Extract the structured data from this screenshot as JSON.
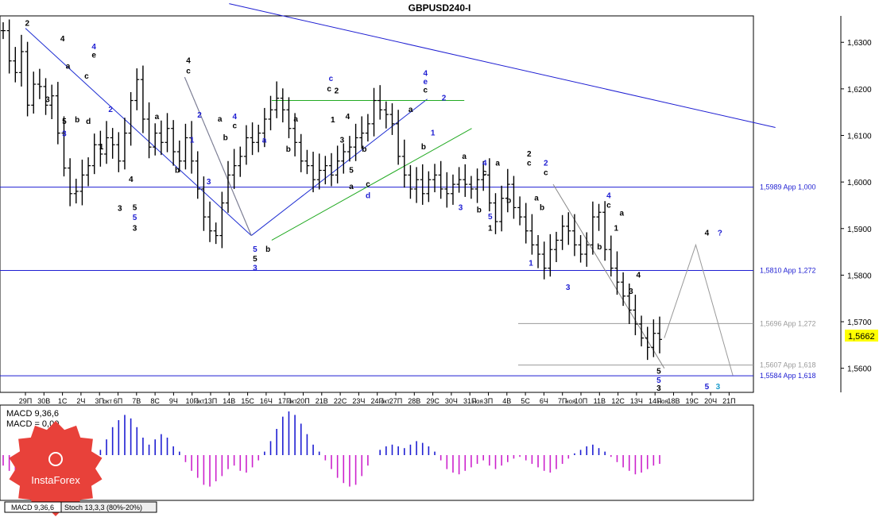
{
  "chart_data": {
    "type": "candlestick",
    "title": "GBPUSD240-I",
    "symbol": "GBPUSD",
    "timeframe": "H4",
    "ylim": [
      1.555,
      1.6355
    ],
    "y_ticks": [
      {
        "value": 1.63,
        "label": "1,6300"
      },
      {
        "value": 1.62,
        "label": "1,6200"
      },
      {
        "value": 1.61,
        "label": "1,6100"
      },
      {
        "value": 1.6,
        "label": "1,6000"
      },
      {
        "value": 1.59,
        "label": "1,5900"
      },
      {
        "value": 1.58,
        "label": "1,5800"
      },
      {
        "value": 1.57,
        "label": "1,5700"
      },
      {
        "value": 1.56,
        "label": "1,5600"
      }
    ],
    "current_price": {
      "value": 1.5662,
      "label": "1,5662"
    },
    "x_ticks": [
      "29П",
      "30В",
      "1С",
      "2Ч",
      "3П",
      "6П",
      "7В",
      "8С",
      "9Ч",
      "10П",
      "13П",
      "14В",
      "15С",
      "16Ч",
      "17П",
      "20П",
      "21В",
      "22С",
      "23Ч",
      "24П",
      "27П",
      "28В",
      "29С",
      "30Ч",
      "31П",
      "3П",
      "4В",
      "5С",
      "6Ч",
      "7П",
      "10П",
      "11В",
      "12С",
      "13Ч",
      "14П",
      "18В",
      "19С",
      "20Ч",
      "21П"
    ],
    "month_labels": [
      {
        "after_tick": 4,
        "label": "окт"
      },
      {
        "after_tick": 9,
        "label": "окт"
      },
      {
        "after_tick": 14,
        "label": "окт"
      },
      {
        "after_tick": 19,
        "label": "окт"
      },
      {
        "after_tick": 24,
        "label": "ноя"
      },
      {
        "after_tick": 29,
        "label": "ноя"
      },
      {
        "after_tick": 34,
        "label": "ноя"
      }
    ],
    "price_path": [
      [
        0,
        1.6325
      ],
      [
        1,
        1.626
      ],
      [
        2,
        1.6235
      ],
      [
        3,
        1.628
      ],
      [
        4,
        1.6165
      ],
      [
        5,
        1.621
      ],
      [
        6,
        1.6205
      ],
      [
        7,
        1.6165
      ],
      [
        8,
        1.6185
      ],
      [
        9,
        1.6105
      ],
      [
        10,
        1.603
      ],
      [
        11,
        1.5975
      ],
      [
        12,
        1.598
      ],
      [
        13,
        1.6015
      ],
      [
        14,
        1.6035
      ],
      [
        15,
        1.608
      ],
      [
        16,
        1.606
      ],
      [
        17,
        1.6095
      ],
      [
        18,
        1.608
      ],
      [
        19,
        1.6045
      ],
      [
        20,
        1.6105
      ],
      [
        21,
        1.6175
      ],
      [
        22,
        1.622
      ],
      [
        23,
        1.6135
      ],
      [
        24,
        1.6075
      ],
      [
        25,
        1.6105
      ],
      [
        26,
        1.6085
      ],
      [
        27,
        1.6115
      ],
      [
        28,
        1.6065
      ],
      [
        29,
        1.6045
      ],
      [
        30,
        1.6095
      ],
      [
        31,
        1.6045
      ],
      [
        32,
        1.5985
      ],
      [
        33,
        1.5925
      ],
      [
        34,
        1.5895
      ],
      [
        35,
        1.5885
      ],
      [
        36,
        1.5955
      ],
      [
        37,
        1.6015
      ],
      [
        38,
        1.6035
      ],
      [
        39,
        1.6055
      ],
      [
        40,
        1.6095
      ],
      [
        41,
        1.6085
      ],
      [
        42,
        1.6105
      ],
      [
        43,
        1.6135
      ],
      [
        44,
        1.6155
      ],
      [
        45,
        1.618
      ],
      [
        46,
        1.6155
      ],
      [
        47,
        1.6115
      ],
      [
        48,
        1.6085
      ],
      [
        49,
        1.6045
      ],
      [
        50,
        1.6035
      ],
      [
        51,
        1.6005
      ],
      [
        52,
        1.6025
      ],
      [
        53,
        1.6035
      ],
      [
        54,
        1.6015
      ],
      [
        55,
        1.6045
      ],
      [
        56,
        1.6065
      ],
      [
        57,
        1.6075
      ],
      [
        58,
        1.6095
      ],
      [
        59,
        1.6105
      ],
      [
        60,
        1.6125
      ],
      [
        61,
        1.6175
      ],
      [
        62,
        1.6155
      ],
      [
        63,
        1.6145
      ],
      [
        64,
        1.6125
      ],
      [
        65,
        1.6055
      ],
      [
        66,
        1.6015
      ],
      [
        67,
        1.5985
      ],
      [
        68,
        1.6005
      ],
      [
        69,
        1.5975
      ],
      [
        70,
        1.6005
      ],
      [
        71,
        1.6015
      ],
      [
        72,
        1.5985
      ],
      [
        73,
        1.5975
      ],
      [
        74,
        1.5995
      ],
      [
        75,
        1.6005
      ],
      [
        76,
        1.5995
      ],
      [
        77,
        1.5985
      ],
      [
        78,
        1.6005
      ],
      [
        79,
        1.6015
      ],
      [
        80,
        1.5955
      ],
      [
        81,
        1.5915
      ],
      [
        82,
        1.5965
      ],
      [
        83,
        1.5995
      ],
      [
        84,
        1.5945
      ],
      [
        85,
        1.5925
      ],
      [
        86,
        1.5895
      ],
      [
        87,
        1.5865
      ],
      [
        88,
        1.5845
      ],
      [
        89,
        1.5815
      ],
      [
        90,
        1.5855
      ],
      [
        91,
        1.5875
      ],
      [
        92,
        1.5905
      ],
      [
        93,
        1.5895
      ],
      [
        94,
        1.5865
      ],
      [
        95,
        1.5845
      ],
      [
        96,
        1.5865
      ],
      [
        97,
        1.5925
      ],
      [
        98,
        1.5935
      ],
      [
        99,
        1.5855
      ],
      [
        100,
        1.5815
      ],
      [
        101,
        1.5785
      ],
      [
        102,
        1.5755
      ],
      [
        103,
        1.5725
      ],
      [
        104,
        1.5695
      ],
      [
        105,
        1.5665
      ],
      [
        106,
        1.5645
      ],
      [
        107,
        1.5675
      ],
      [
        108,
        1.5662
      ]
    ],
    "horizontal_levels": [
      {
        "value": 1.5989,
        "label": "1,5989 App 1,000",
        "color": "#1e1ed2",
        "style": "solid"
      },
      {
        "value": 1.581,
        "label": "1,5810 App 1,272",
        "color": "#1e1ed2",
        "style": "solid"
      },
      {
        "value": 1.5696,
        "label": "1,5696 App 1,272",
        "color": "#9a9a9a",
        "style": "partial"
      },
      {
        "value": 1.5607,
        "label": "1,5607 App 1,618",
        "color": "#9a9a9a",
        "style": "partial"
      },
      {
        "value": 1.5584,
        "label": "1,5584 App 1,618",
        "color": "#1e1ed2",
        "style": "solid"
      }
    ],
    "trendlines": [
      {
        "color": "#1e1ed2",
        "from": [
          11,
          1.6383
        ],
        "to": [
          40.5,
          1.6117
        ]
      },
      {
        "color": "#1e2ed2",
        "from": [
          0,
          1.633
        ],
        "to": [
          12.2,
          1.5885
        ]
      },
      {
        "color": "#1e2ed2",
        "from": [
          8.6,
          1.6225
        ],
        "to": [
          12.2,
          1.5885
        ]
      },
      {
        "color": "#1e2ed2",
        "from": [
          12.2,
          1.5885
        ],
        "to": [
          21.7,
          1.6178
        ]
      },
      {
        "color": "#22aa22",
        "from": [
          13.3,
          1.6175
        ],
        "to": [
          23.7,
          1.6175
        ]
      },
      {
        "color": "#22aa22",
        "from": [
          13.3,
          1.5875
        ],
        "to": [
          24.1,
          1.6115
        ]
      },
      {
        "color": "#888888",
        "from": [
          28.5,
          1.5995
        ],
        "to": [
          34.5,
          1.56
        ]
      },
      {
        "color": "#888888",
        "from": [
          8.6,
          1.6225
        ],
        "to": [
          12.2,
          1.5885
        ]
      }
    ],
    "forecast_path": [
      [
        34.5,
        1.5665
      ],
      [
        36.2,
        1.5865
      ],
      [
        38.2,
        1.5585
      ]
    ],
    "wave_labels": [
      {
        "text": "2",
        "x": 0.1,
        "y": 1.6335,
        "color": "#000000"
      },
      {
        "text": "4",
        "x": 2.0,
        "y": 1.6302,
        "color": "#000000"
      },
      {
        "text": "4",
        "x": 3.7,
        "y": 1.6285,
        "color": "#1e1ed2"
      },
      {
        "text": "e",
        "x": 3.7,
        "y": 1.6267,
        "color": "#000000"
      },
      {
        "text": "a",
        "x": 2.3,
        "y": 1.6243,
        "color": "#000000"
      },
      {
        "text": "c",
        "x": 3.3,
        "y": 1.6222,
        "color": "#000000"
      },
      {
        "text": "3",
        "x": 1.2,
        "y": 1.6172,
        "color": "#000000"
      },
      {
        "text": "2",
        "x": 4.6,
        "y": 1.615,
        "color": "#1e1ed2"
      },
      {
        "text": "5",
        "x": 2.1,
        "y": 1.6125,
        "color": "#000000"
      },
      {
        "text": "b",
        "x": 2.8,
        "y": 1.6128,
        "color": "#000000"
      },
      {
        "text": "d",
        "x": 3.4,
        "y": 1.6125,
        "color": "#000000"
      },
      {
        "text": "3",
        "x": 2.1,
        "y": 1.6098,
        "color": "#1e1ed2"
      },
      {
        "text": "1",
        "x": 4.1,
        "y": 1.607,
        "color": "#000000"
      },
      {
        "text": "4",
        "x": 5.7,
        "y": 1.6,
        "color": "#000000"
      },
      {
        "text": "3",
        "x": 5.1,
        "y": 1.5938,
        "color": "#000000"
      },
      {
        "text": "5",
        "x": 5.9,
        "y": 1.594,
        "color": "#000000"
      },
      {
        "text": "5",
        "x": 5.9,
        "y": 1.5918,
        "color": "#1e1ed2"
      },
      {
        "text": "3",
        "x": 5.9,
        "y": 1.5895,
        "color": "#000000"
      },
      {
        "text": "a",
        "x": 7.1,
        "y": 1.6135,
        "color": "#000000"
      },
      {
        "text": "b",
        "x": 8.2,
        "y": 1.602,
        "color": "#000000"
      },
      {
        "text": "4",
        "x": 8.8,
        "y": 1.6255,
        "color": "#000000"
      },
      {
        "text": "c",
        "x": 8.8,
        "y": 1.6233,
        "color": "#000000"
      },
      {
        "text": "2",
        "x": 9.4,
        "y": 1.6138,
        "color": "#1e1ed2"
      },
      {
        "text": "1",
        "x": 9.0,
        "y": 1.6085,
        "color": "#1e1ed2"
      },
      {
        "text": "3",
        "x": 9.9,
        "y": 1.5995,
        "color": "#1e1ed2"
      },
      {
        "text": "a",
        "x": 10.5,
        "y": 1.613,
        "color": "#000000"
      },
      {
        "text": "b",
        "x": 10.8,
        "y": 1.609,
        "color": "#000000"
      },
      {
        "text": "4",
        "x": 11.3,
        "y": 1.6135,
        "color": "#1e1ed2"
      },
      {
        "text": "c",
        "x": 11.3,
        "y": 1.6115,
        "color": "#000000"
      },
      {
        "text": "a",
        "x": 12.9,
        "y": 1.6085,
        "color": "#1e1ed2"
      },
      {
        "text": "5",
        "x": 12.4,
        "y": 1.585,
        "color": "#1e1ed2"
      },
      {
        "text": "5",
        "x": 12.4,
        "y": 1.583,
        "color": "#000000"
      },
      {
        "text": "3",
        "x": 12.4,
        "y": 1.581,
        "color": "#1e1ed2"
      },
      {
        "text": "b",
        "x": 13.1,
        "y": 1.585,
        "color": "#000000"
      },
      {
        "text": "a",
        "x": 14.6,
        "y": 1.613,
        "color": "#000000"
      },
      {
        "text": "b",
        "x": 14.2,
        "y": 1.6065,
        "color": "#000000"
      },
      {
        "text": "c",
        "x": 16.5,
        "y": 1.6217,
        "color": "#1e1ed2"
      },
      {
        "text": "c",
        "x": 16.4,
        "y": 1.6195,
        "color": "#000000"
      },
      {
        "text": "2",
        "x": 16.8,
        "y": 1.619,
        "color": "#000000"
      },
      {
        "text": "1",
        "x": 16.6,
        "y": 1.6128,
        "color": "#000000"
      },
      {
        "text": "4",
        "x": 17.4,
        "y": 1.6135,
        "color": "#000000"
      },
      {
        "text": "3",
        "x": 17.1,
        "y": 1.6085,
        "color": "#000000"
      },
      {
        "text": "b",
        "x": 18.3,
        "y": 1.6065,
        "color": "#000000"
      },
      {
        "text": "5",
        "x": 17.6,
        "y": 1.602,
        "color": "#000000"
      },
      {
        "text": "a",
        "x": 17.6,
        "y": 1.5985,
        "color": "#000000"
      },
      {
        "text": "c",
        "x": 18.5,
        "y": 1.599,
        "color": "#000000"
      },
      {
        "text": "d",
        "x": 18.5,
        "y": 1.5965,
        "color": "#1e1ed2"
      },
      {
        "text": "4",
        "x": 21.6,
        "y": 1.6228,
        "color": "#1e1ed2"
      },
      {
        "text": "e",
        "x": 21.6,
        "y": 1.621,
        "color": "#1e1ed2"
      },
      {
        "text": "c",
        "x": 21.6,
        "y": 1.6192,
        "color": "#000000"
      },
      {
        "text": "a",
        "x": 20.8,
        "y": 1.615,
        "color": "#000000"
      },
      {
        "text": "2",
        "x": 22.6,
        "y": 1.6175,
        "color": "#1e1ed2"
      },
      {
        "text": "1",
        "x": 22.0,
        "y": 1.61,
        "color": "#1e1ed2"
      },
      {
        "text": "b",
        "x": 21.5,
        "y": 1.607,
        "color": "#000000"
      },
      {
        "text": "a",
        "x": 23.7,
        "y": 1.605,
        "color": "#000000"
      },
      {
        "text": "4",
        "x": 24.8,
        "y": 1.6035,
        "color": "#1e1ed2"
      },
      {
        "text": "c",
        "x": 24.8,
        "y": 1.6015,
        "color": "#000000"
      },
      {
        "text": "a",
        "x": 25.5,
        "y": 1.6035,
        "color": "#000000"
      },
      {
        "text": "3",
        "x": 23.5,
        "y": 1.594,
        "color": "#1e1ed2"
      },
      {
        "text": "b",
        "x": 24.5,
        "y": 1.5935,
        "color": "#000000"
      },
      {
        "text": "5",
        "x": 25.1,
        "y": 1.592,
        "color": "#1e1ed2"
      },
      {
        "text": "1",
        "x": 25.1,
        "y": 1.5895,
        "color": "#000000"
      },
      {
        "text": "b",
        "x": 26.1,
        "y": 1.5955,
        "color": "#000000"
      },
      {
        "text": "2",
        "x": 27.2,
        "y": 1.6055,
        "color": "#000000"
      },
      {
        "text": "c",
        "x": 27.2,
        "y": 1.6035,
        "color": "#000000"
      },
      {
        "text": "2",
        "x": 28.1,
        "y": 1.6035,
        "color": "#1e1ed2"
      },
      {
        "text": "c",
        "x": 28.1,
        "y": 1.6015,
        "color": "#000000"
      },
      {
        "text": "a",
        "x": 27.6,
        "y": 1.596,
        "color": "#000000"
      },
      {
        "text": "b",
        "x": 27.9,
        "y": 1.594,
        "color": "#000000"
      },
      {
        "text": "1",
        "x": 27.3,
        "y": 1.582,
        "color": "#1e1ed2"
      },
      {
        "text": "4",
        "x": 31.5,
        "y": 1.5965,
        "color": "#1e1ed2"
      },
      {
        "text": "c",
        "x": 31.5,
        "y": 1.5945,
        "color": "#000000"
      },
      {
        "text": "a",
        "x": 32.2,
        "y": 1.5928,
        "color": "#000000"
      },
      {
        "text": "1",
        "x": 31.9,
        "y": 1.5895,
        "color": "#000000"
      },
      {
        "text": "b",
        "x": 31.0,
        "y": 1.5855,
        "color": "#000000"
      },
      {
        "text": "3",
        "x": 29.3,
        "y": 1.5768,
        "color": "#1e1ed2"
      },
      {
        "text": "4",
        "x": 33.1,
        "y": 1.5795,
        "color": "#000000"
      },
      {
        "text": "3",
        "x": 32.7,
        "y": 1.576,
        "color": "#000000"
      },
      {
        "text": "5",
        "x": 34.2,
        "y": 1.5588,
        "color": "#000000"
      },
      {
        "text": "5",
        "x": 34.2,
        "y": 1.5569,
        "color": "#1e1ed2"
      },
      {
        "text": "3",
        "x": 34.2,
        "y": 1.5552,
        "color": "#000000"
      },
      {
        "text": "4",
        "x": 36.8,
        "y": 1.5885,
        "color": "#000000"
      },
      {
        "text": "?",
        "x": 37.5,
        "y": 1.5885,
        "color": "#1e1ed2"
      },
      {
        "text": "5",
        "x": 36.8,
        "y": 1.5555,
        "color": "#1e1ed2"
      },
      {
        "text": "3",
        "x": 37.4,
        "y": 1.5555,
        "color": "#1c9ccc"
      }
    ]
  },
  "indicator": {
    "macd_label": "MACD 9,36,6",
    "macd_value_label": "MACD = 0,00",
    "macd_values": [
      -0.6,
      -0.9,
      -1.1,
      -0.8,
      -0.5,
      -0.3,
      -0.2,
      -0.5,
      -0.9,
      -1.4,
      -1.6,
      -1.9,
      -2.1,
      -1.8,
      -1.2,
      -0.4,
      0.3,
      0.9,
      1.6,
      2.0,
      2.3,
      2.1,
      1.6,
      1.0,
      0.6,
      0.9,
      1.2,
      1.0,
      0.5,
      0.2,
      -0.4,
      -0.9,
      -1.3,
      -1.7,
      -1.8,
      -1.5,
      -1.2,
      -0.8,
      -0.6,
      -0.9,
      -1.0,
      -0.7,
      -0.3,
      0.2,
      0.8,
      1.5,
      2.2,
      2.5,
      2.3,
      1.8,
      1.2,
      0.6,
      0.2,
      -0.3,
      -0.8,
      -1.3,
      -1.6,
      -1.8,
      -1.7,
      -1.2,
      -0.6,
      0.0,
      0.3,
      0.5,
      0.6,
      0.5,
      0.4,
      0.6,
      0.8,
      0.7,
      0.5,
      0.2,
      -0.3,
      -0.8,
      -1.0,
      -1.1,
      -0.9,
      -0.7,
      -0.5,
      -0.3,
      -0.6,
      -0.8,
      -0.6,
      -0.4,
      -0.2,
      -0.1,
      -0.3,
      -0.5,
      -0.7,
      -0.9,
      -1.0,
      -0.8,
      -0.5,
      -0.2,
      0.1,
      0.3,
      0.5,
      0.6,
      0.4,
      0.2,
      -0.1,
      -0.4,
      -0.7,
      -0.9,
      -1.1,
      -1.0,
      -0.8,
      -0.6,
      -0.5
    ],
    "tabs": [
      {
        "label": "MACD 9,36,6"
      },
      {
        "label": "Stoch 13,3,3 (80%-20%)"
      }
    ]
  },
  "logo": {
    "text": "InstaForex",
    "color": "#e8413a"
  },
  "colors": {
    "up_bar": "#1e1ed2",
    "down_bar": "#cc22cc",
    "price_bar": "#000000",
    "current_price_bg": "#ffff00"
  }
}
